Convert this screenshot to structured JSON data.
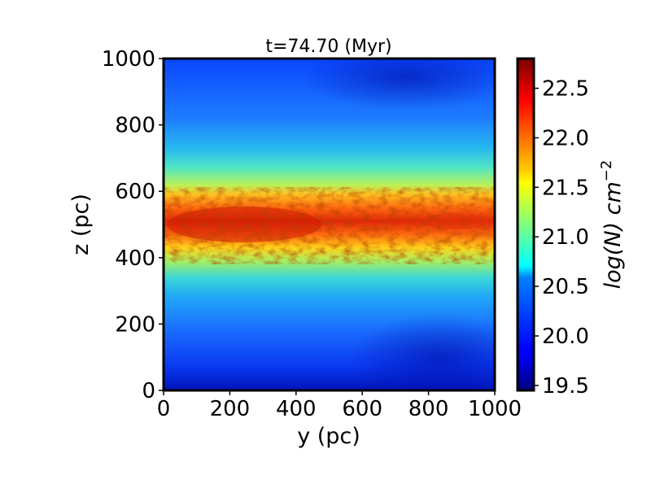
{
  "chart_data": {
    "type": "heatmap",
    "title": "t=74.70 (Myr)",
    "xlabel": "y (pc)",
    "ylabel": "z (pc)",
    "xlim": [
      0,
      1000
    ],
    "ylim": [
      0,
      1000
    ],
    "xticks": [
      "0",
      "200",
      "400",
      "600",
      "800",
      "1000"
    ],
    "yticks": [
      "0",
      "200",
      "400",
      "600",
      "800",
      "1000"
    ],
    "colorbar": {
      "label_base": "log(N) cm",
      "label_exp": "−2",
      "range": [
        19.45,
        22.8
      ],
      "ticks": [
        "19.5",
        "20.0",
        "20.5",
        "21.0",
        "21.5",
        "22.0",
        "22.5"
      ],
      "colormap": "jet"
    },
    "description_profile": {
      "midplane_z": 500,
      "peak_logN": 22.7,
      "background_logN": 19.6
    }
  }
}
